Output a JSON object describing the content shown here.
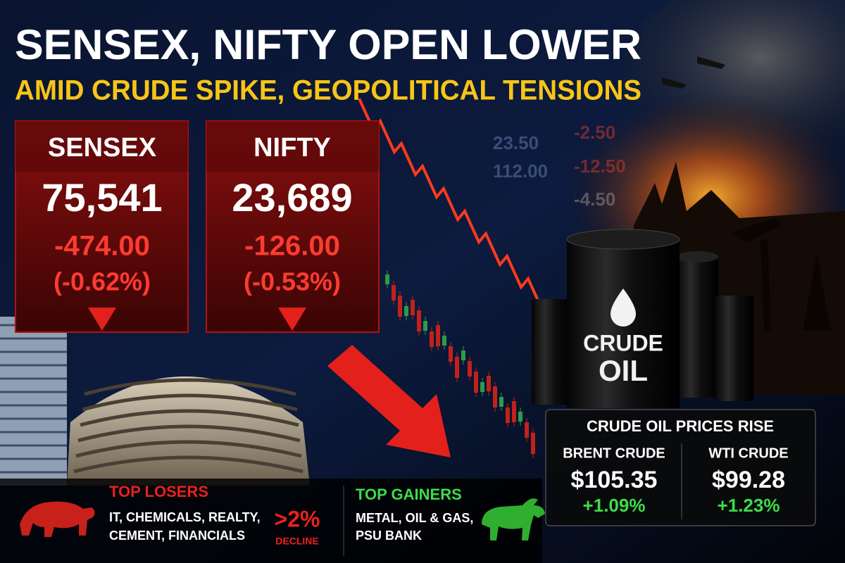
{
  "headline": "SENSEX, NIFTY OPEN LOWER",
  "subheadline": "AMID CRUDE SPIKE, GEOPOLITICAL TENSIONS",
  "indices": [
    {
      "name": "SENSEX",
      "level": "75,541",
      "change": "-474.00",
      "percent": "(-0.62%)"
    },
    {
      "name": "NIFTY",
      "level": "23,689",
      "change": "-126.00",
      "percent": "(-0.53%)"
    }
  ],
  "background_figures": [
    "23.50",
    "112.00",
    "-2.50",
    "-12.50",
    "-4.50"
  ],
  "barrel_label": [
    "CRUDE",
    "OIL"
  ],
  "crude_panel": {
    "title": "CRUDE OIL PRICES RISE",
    "items": [
      {
        "name": "BRENT CRUDE",
        "price": "$105.35",
        "change": "+1.09%"
      },
      {
        "name": "WTI CRUDE",
        "price": "$99.28",
        "change": "+1.23%"
      }
    ]
  },
  "losers": {
    "title": "TOP LOSERS",
    "lines": [
      "IT, CHEMICALS, REALTY,",
      "CEMENT, FINANCIALS"
    ],
    "badge": ">2%",
    "badge_caption": "DECLINE"
  },
  "gainers": {
    "title": "TOP GAINERS",
    "lines": [
      "METAL, OIL & GAS,",
      "PSU BANK"
    ]
  }
}
